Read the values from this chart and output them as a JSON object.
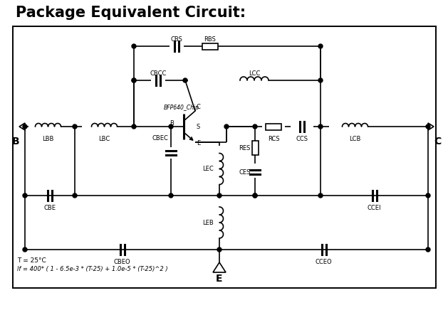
{
  "title": "Package Equivalent Circuit:",
  "title_fontsize": 15,
  "title_fontweight": "bold",
  "footnote1": "T = 25°C",
  "footnote2": "lf = 400* ( 1 - 6.5e-3 * (T-25) + 1.0e-5 * (T-25)^2 )",
  "labels": {
    "B": "B",
    "C": "C",
    "E": "E",
    "LBB": "LBB",
    "LBC": "LBC",
    "LCB": "LCB",
    "LCC": "LCC",
    "LEC": "LEC",
    "LEB": "LEB",
    "CBS": "CBS",
    "RBS": "RBS",
    "CBCC": "CBCC",
    "CBEC": "CBEC",
    "CBE": "CBE",
    "CCEI": "CCEI",
    "CBEO": "CBEO",
    "CCEO": "CCEO",
    "RCS": "RCS",
    "CCS": "CCS",
    "CES": "CES",
    "RES": "RES",
    "chip": "BFP640_Chip"
  }
}
